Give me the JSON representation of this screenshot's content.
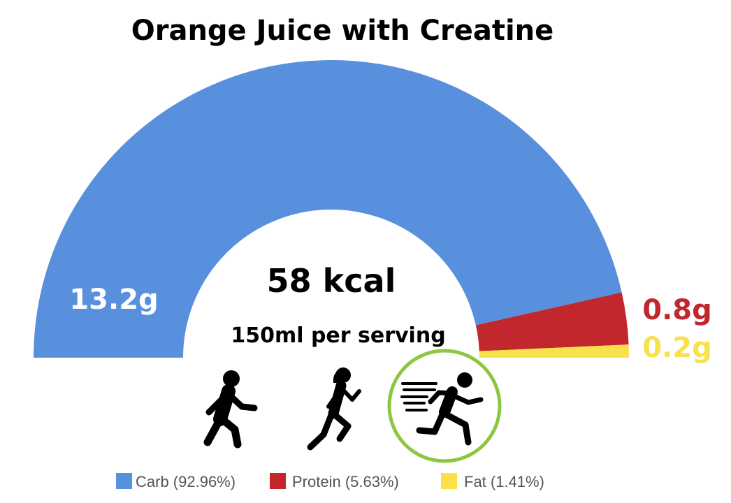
{
  "colors": {
    "carb": "#5990dd",
    "protein": "#c1272d",
    "fat": "#f9e14b",
    "highlight_ring": "#8dc63f"
  },
  "chart_data": {
    "type": "pie",
    "subtype": "semicircle-donut",
    "title": "Orange Juice with Creatine",
    "center_label": "58 kcal",
    "center_sublabel": "150ml per serving",
    "series": [
      {
        "key": "carb",
        "name": "Carb",
        "value": 13.2,
        "unit": "g",
        "label": "13.2g",
        "percent": 92.96,
        "legend": "Carb (92.96%)"
      },
      {
        "key": "protein",
        "name": "Protein",
        "value": 0.8,
        "unit": "g",
        "label": "0.8g",
        "percent": 5.63,
        "legend": "Protein (5.63%)"
      },
      {
        "key": "fat",
        "name": "Fat",
        "value": 0.2,
        "unit": "g",
        "label": "0.2g",
        "percent": 1.41,
        "legend": "Fat (1.41%)"
      }
    ],
    "legend_position": "bottom"
  },
  "activity_icons": [
    {
      "name": "walking-icon",
      "highlighted": false
    },
    {
      "name": "jogging-icon",
      "highlighted": false
    },
    {
      "name": "sprinting-icon",
      "highlighted": true
    }
  ]
}
